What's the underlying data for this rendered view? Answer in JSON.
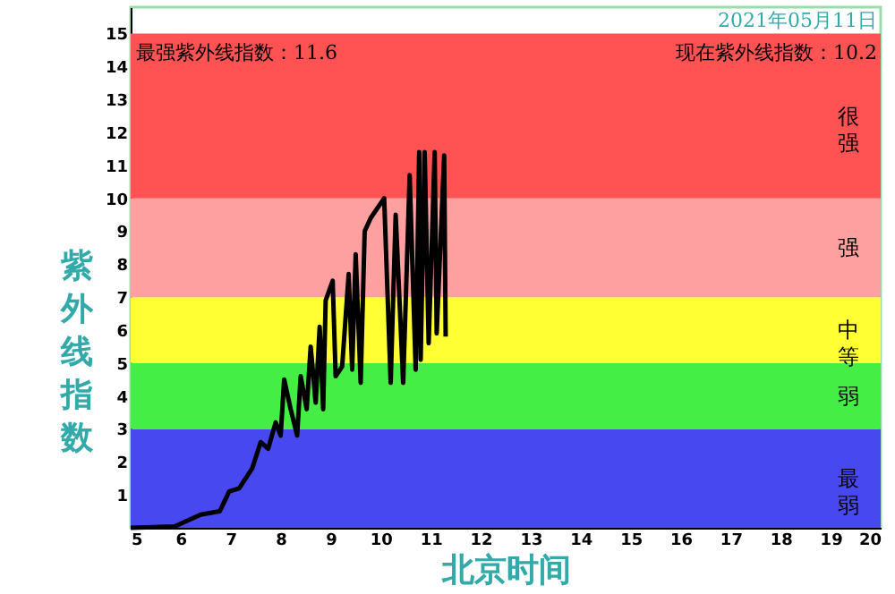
{
  "chart_data": {
    "type": "line",
    "xlabel": "北京时间",
    "ylabel": "紫外线指数",
    "xlim": [
      5,
      20
    ],
    "xticks": [
      5,
      6,
      7,
      8,
      9,
      10,
      11,
      12,
      13,
      14,
      15,
      16,
      17,
      18,
      19,
      20
    ],
    "ylim": [
      0,
      15.8
    ],
    "yticks": [
      1,
      2,
      3,
      4,
      5,
      6,
      7,
      8,
      9,
      10,
      11,
      12,
      13,
      14,
      15
    ],
    "grid": false,
    "marker": "none",
    "line_style": "solid",
    "series": [
      {
        "color": "#000000",
        "x": [
          5,
          5.88,
          6.4,
          6.78,
          6.97,
          7.17,
          7.43,
          7.6,
          7.75,
          7.9,
          8.0,
          8.07,
          8.2,
          8.33,
          8.4,
          8.52,
          8.6,
          8.7,
          8.78,
          8.85,
          8.9,
          9.04,
          9.1,
          9.23,
          9.36,
          9.43,
          9.5,
          9.6,
          9.68,
          9.8,
          10.07,
          10.2,
          10.3,
          10.45,
          10.58,
          10.7,
          10.77,
          10.8,
          10.88,
          10.96,
          11.08,
          11.12,
          11.27,
          11.3
        ],
        "values": [
          0,
          0.04,
          0.4,
          0.5,
          1.1,
          1.2,
          1.8,
          2.6,
          2.4,
          3.2,
          2.8,
          4.5,
          3.6,
          2.8,
          4.6,
          3.6,
          5.5,
          3.8,
          6.1,
          3.6,
          6.9,
          7.5,
          4.6,
          4.9,
          7.7,
          4.8,
          8.3,
          4.4,
          9.0,
          9.4,
          10.0,
          4.4,
          9.5,
          4.4,
          10.7,
          4.8,
          11.4,
          5.1,
          11.4,
          5.6,
          11.4,
          5.9,
          11.3,
          5.8
        ]
      }
    ],
    "bands": [
      {
        "axis": "y",
        "from": 0,
        "to": 3,
        "label": "最弱",
        "color": "#4848f0"
      },
      {
        "axis": "y",
        "from": 3,
        "to": 5,
        "label": "弱",
        "color": "#44ee44"
      },
      {
        "axis": "y",
        "from": 5,
        "to": 7,
        "label": "中等",
        "color": "#ffff33"
      },
      {
        "axis": "y",
        "from": 7,
        "to": 10,
        "label": "强",
        "color": "#ffa0a0"
      },
      {
        "axis": "y",
        "from": 10,
        "to": 15,
        "label": "很强",
        "color": "#ff5252"
      }
    ],
    "annotations": [
      "2021年05月11日",
      "最强紫外线指数：11.6",
      "现在紫外线指数：10.2"
    ]
  }
}
